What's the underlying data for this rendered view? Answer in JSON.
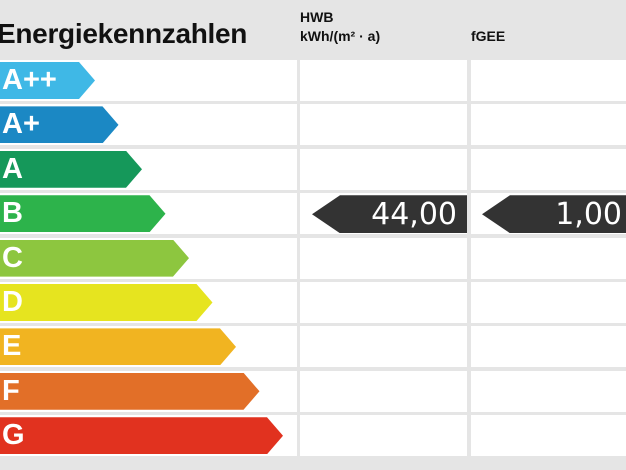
{
  "chart_data": {
    "type": "table",
    "title": "Energiekennzahlen",
    "columns": [
      {
        "label_line1": "HWB",
        "label_line2": "kWh/(m² · a)"
      },
      {
        "label_line1": "",
        "label_line2": "fGEE"
      }
    ],
    "classes": [
      {
        "label": "A++",
        "color": "#3fb8e6"
      },
      {
        "label": "A+",
        "color": "#1b88c4"
      },
      {
        "label": "A",
        "color": "#15985a"
      },
      {
        "label": "B",
        "color": "#2db34b"
      },
      {
        "label": "C",
        "color": "#8dc63f"
      },
      {
        "label": "D",
        "color": "#e6e41f"
      },
      {
        "label": "E",
        "color": "#f1b421"
      },
      {
        "label": "F",
        "color": "#e26f28"
      },
      {
        "label": "G",
        "color": "#e1321f"
      }
    ],
    "markers": [
      {
        "column": "HWB",
        "class": "B",
        "value": "44,00"
      },
      {
        "column": "fGEE",
        "class": "B",
        "value": "1,00"
      }
    ]
  }
}
